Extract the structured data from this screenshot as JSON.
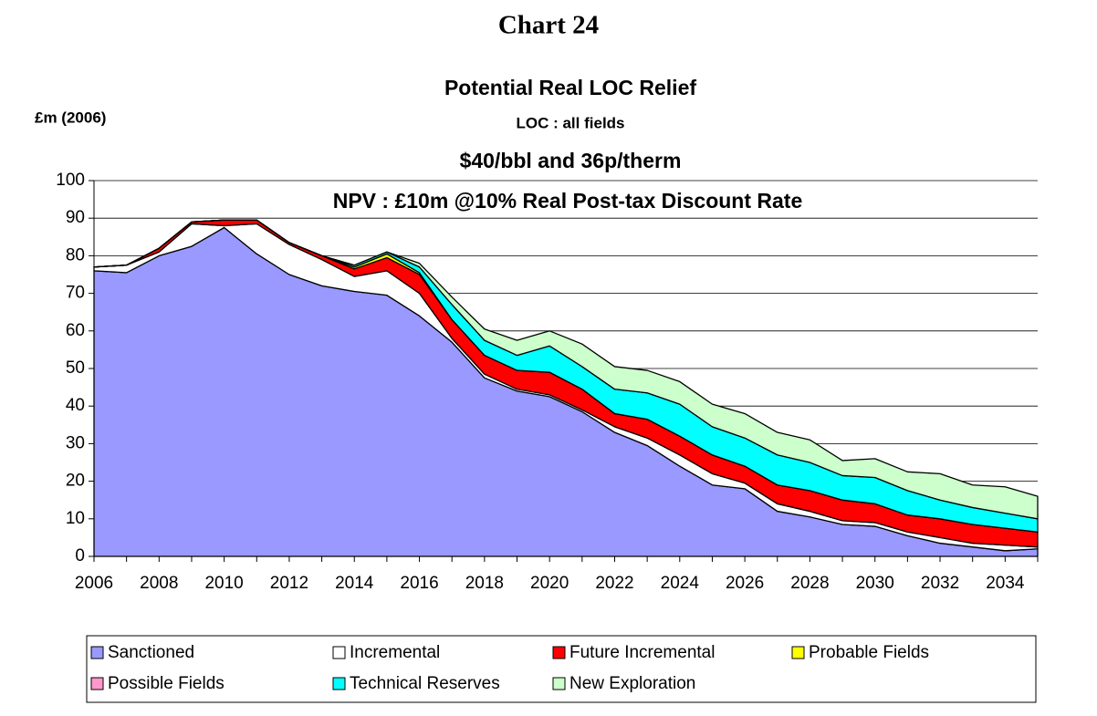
{
  "chart_data": {
    "type": "stacked-area",
    "heading": "Chart 24",
    "title": "Potential Real LOC Relief",
    "subtitle": "LOC : all fields",
    "annotations": [
      "$40/bbl and 36p/therm",
      "NPV : £10m @10% Real Post-tax Discount Rate"
    ],
    "ylabel": "£m (2006)",
    "x": [
      2006,
      2007,
      2008,
      2009,
      2010,
      2011,
      2012,
      2013,
      2014,
      2015,
      2016,
      2017,
      2018,
      2019,
      2020,
      2021,
      2022,
      2023,
      2024,
      2025,
      2026,
      2027,
      2028,
      2029,
      2030,
      2031,
      2032,
      2033,
      2034,
      2035
    ],
    "xlim": [
      2006,
      2035
    ],
    "xticks": [
      2006,
      2008,
      2010,
      2012,
      2014,
      2016,
      2018,
      2020,
      2022,
      2024,
      2026,
      2028,
      2030,
      2032,
      2034
    ],
    "ylim": [
      0,
      100
    ],
    "yticks": [
      0,
      10,
      20,
      30,
      40,
      50,
      60,
      70,
      80,
      90,
      100
    ],
    "grid": true,
    "legend": "bottom",
    "series": [
      {
        "name": "Sanctioned",
        "color": "#9999ff",
        "values": [
          76,
          75.5,
          80,
          82.5,
          87.5,
          80.5,
          75,
          72,
          70.5,
          69.5,
          64,
          57,
          47.5,
          44,
          42.5,
          38.5,
          33,
          29.5,
          24,
          19,
          18,
          12,
          10.5,
          8.5,
          8,
          5.5,
          3.5,
          2.5,
          1.5,
          2
        ]
      },
      {
        "name": "Incremental",
        "color": "#ffffff",
        "values": [
          1,
          2,
          1,
          6,
          0.5,
          8,
          8,
          7,
          4,
          6.5,
          6,
          1,
          1,
          0.5,
          0.5,
          0.5,
          1.5,
          2,
          3,
          3,
          1.5,
          2,
          1.5,
          1,
          1,
          1,
          1.5,
          1,
          1.5,
          0.5
        ]
      },
      {
        "name": "Future Incremental",
        "color": "#ff0000",
        "values": [
          0,
          0,
          1,
          0.5,
          1.5,
          1,
          0.5,
          1,
          2,
          3.5,
          5,
          5,
          5,
          5,
          6,
          5.5,
          3.5,
          5,
          5,
          5,
          4.5,
          5,
          5.5,
          5.5,
          5,
          4.5,
          5,
          5,
          4.5,
          4
        ]
      },
      {
        "name": "Probable Fields",
        "color": "#ffff00",
        "values": [
          0,
          0,
          0,
          0,
          0,
          0,
          0,
          0,
          0.5,
          1,
          0.5,
          0,
          0,
          0,
          0,
          0,
          0,
          0,
          0,
          0,
          0,
          0,
          0,
          0,
          0,
          0,
          0,
          0,
          0,
          0
        ]
      },
      {
        "name": "Possible Fields",
        "color": "#ff99cc",
        "values": [
          0,
          0,
          0,
          0,
          0,
          0,
          0,
          0,
          0,
          0,
          0,
          0,
          0,
          0,
          0,
          0,
          0,
          0,
          0,
          0,
          0,
          0,
          0,
          0,
          0,
          0,
          0,
          0,
          0,
          0
        ]
      },
      {
        "name": "Technical Reserves",
        "color": "#00ffff",
        "values": [
          0,
          0,
          0,
          0,
          0,
          0,
          0,
          0,
          0.5,
          0.5,
          1.5,
          4,
          4,
          4,
          7,
          6,
          6.5,
          7,
          8.5,
          7.5,
          7.5,
          8,
          7.5,
          6.5,
          7,
          6.5,
          5,
          4.5,
          4,
          3.5
        ]
      },
      {
        "name": "New Exploration",
        "color": "#ccffcc",
        "values": [
          0,
          0,
          0,
          0,
          0,
          0,
          0,
          0,
          0,
          0,
          1,
          2,
          3,
          4,
          4,
          6,
          6,
          6,
          6,
          6,
          6.5,
          6,
          6,
          4,
          5,
          5,
          7,
          6,
          7,
          6
        ]
      }
    ]
  }
}
